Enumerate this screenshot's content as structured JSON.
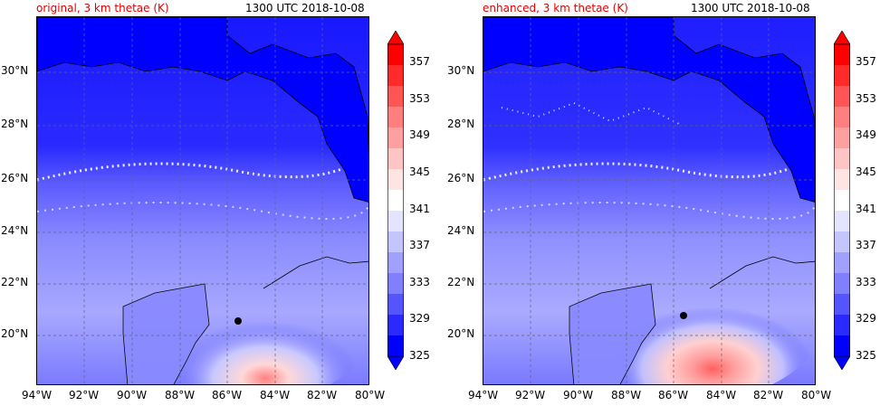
{
  "panels": [
    {
      "title_left": "original, 3 km thetae (K)",
      "title_right": "1300 UTC 2018-10-08",
      "storm_center": {
        "lon": -85.5,
        "lat": 20.55
      }
    },
    {
      "title_left": "enhanced, 3 km thetae (K)",
      "title_right": "1300 UTC 2018-10-08",
      "storm_center": {
        "lon": -85.55,
        "lat": 20.75
      }
    }
  ],
  "map_extent": {
    "lon": [
      -94,
      -80
    ],
    "lat": [
      18.2,
      32
    ]
  },
  "x_ticks": [
    "94°W",
    "92°W",
    "90°W",
    "88°W",
    "86°W",
    "84°W",
    "82°W",
    "80°W"
  ],
  "y_ticks": [
    "30°N",
    "28°N",
    "26°N",
    "24°N",
    "22°N",
    "20°N"
  ],
  "colorbar": {
    "labels": [
      "357",
      "353",
      "349",
      "345",
      "341",
      "337",
      "333",
      "329",
      "325"
    ],
    "range": [
      325,
      359
    ],
    "colors": [
      "#ff0000",
      "#ff2a2a",
      "#ff5555",
      "#ff7f7f",
      "#ffa0a0",
      "#ffc4c4",
      "#ffe4e4",
      "#ffffff",
      "#e4e4ff",
      "#c4c4ff",
      "#a0a0ff",
      "#7f7fff",
      "#5555ff",
      "#2a2aff",
      "#0000ff"
    ],
    "extend": "both"
  }
}
